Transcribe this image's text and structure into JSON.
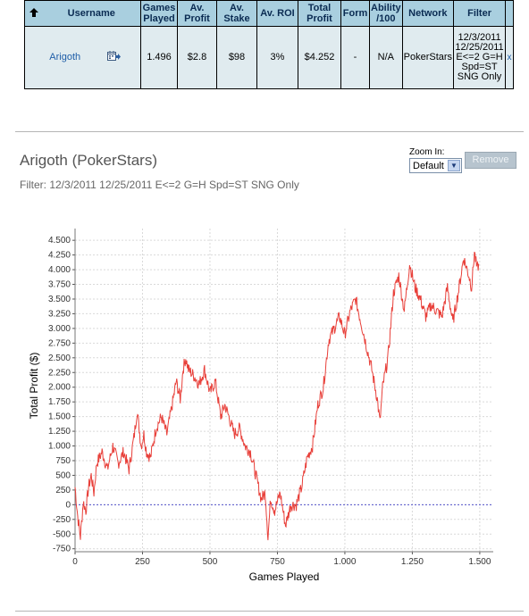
{
  "table": {
    "headers": {
      "username": "Username",
      "games": [
        "Games",
        "Played"
      ],
      "av_profit": [
        "Av.",
        "Profit"
      ],
      "av_stake": [
        "Av.",
        "Stake"
      ],
      "av_roi": "Av. ROI",
      "total_profit": [
        "Total",
        "Profit"
      ],
      "form": "Form",
      "ability": [
        "Ability",
        "/100"
      ],
      "network": "Network",
      "filter": "Filter"
    },
    "row": {
      "username": "Arigoth",
      "games": "1.496",
      "av_profit": "$2.8",
      "av_stake": "$98",
      "av_roi": "3%",
      "total_profit": "$4.252",
      "form": "-",
      "ability": "N/A",
      "network": "PokerStars",
      "filter_lines": [
        "12/3/2011",
        "12/25/2011",
        "E<=2 G=H",
        "Spd=ST",
        "SNG Only"
      ],
      "filter_close": "x"
    }
  },
  "chart_section": {
    "title": "Arigoth (PokerStars)",
    "filter_text": "Filter: 12/3/2011 12/25/2011 E<=2 G=H Spd=ST SNG Only",
    "zoom_label": "Zoom In:",
    "zoom_value": "Default",
    "remove_label": "Remove"
  },
  "colors": {
    "header_bg": "#a9cfdf",
    "row_bg": "#e0ebef",
    "line": "#e8403a",
    "zero_line": "#5555cc"
  },
  "chart_data": {
    "type": "line",
    "xlabel": "Games Played",
    "ylabel": "Total Profit ($)",
    "xlim": [
      0,
      1550
    ],
    "ylim": [
      -800,
      4700
    ],
    "x_ticks": [
      0,
      250,
      500,
      750,
      1000,
      1250,
      1500
    ],
    "x_tick_labels": [
      "0",
      "250",
      "500",
      "750",
      "1.000",
      "1.250",
      "1.500"
    ],
    "y_ticks": [
      -750,
      -500,
      -250,
      0,
      250,
      500,
      750,
      1000,
      1250,
      1500,
      1750,
      2000,
      2250,
      2500,
      2750,
      3000,
      3250,
      3500,
      3750,
      4000,
      4250,
      4500
    ],
    "y_tick_labels": [
      "-750",
      "-500",
      "-250",
      "0",
      "250",
      "500",
      "750",
      "1.000",
      "1.250",
      "1.500",
      "1.750",
      "2.000",
      "2.250",
      "2.500",
      "2.750",
      "3.000",
      "3.250",
      "3.500",
      "3.750",
      "4.000",
      "4.250",
      "4.500"
    ],
    "grid": true,
    "zero_line": true,
    "series": [
      {
        "x": [
          0,
          10,
          20,
          30,
          40,
          50,
          60,
          70,
          80,
          100,
          120,
          140,
          160,
          180,
          200,
          220,
          230,
          245,
          255,
          265,
          280,
          300,
          320,
          340,
          360,
          375,
          390,
          400,
          410,
          420,
          440,
          460,
          480,
          500,
          520,
          540,
          555,
          570,
          590,
          610,
          630,
          650,
          670,
          690,
          705,
          715,
          725,
          740,
          760,
          780,
          800,
          820,
          840,
          860,
          880,
          900,
          920,
          940,
          960,
          980,
          1000,
          1020,
          1040,
          1060,
          1080,
          1100,
          1120,
          1130,
          1140,
          1160,
          1180,
          1200,
          1220,
          1240,
          1260,
          1280,
          1300,
          1320,
          1340,
          1360,
          1380,
          1400,
          1420,
          1440,
          1460,
          1470,
          1480,
          1490,
          1496
        ],
        "y": [
          300,
          -200,
          -550,
          50,
          -100,
          300,
          500,
          200,
          700,
          900,
          600,
          1000,
          700,
          900,
          600,
          1200,
          1600,
          1000,
          1200,
          900,
          800,
          1300,
          1500,
          1200,
          1700,
          2100,
          1800,
          2300,
          2500,
          2300,
          2200,
          2050,
          2300,
          1900,
          2100,
          1500,
          1700,
          1500,
          1200,
          1300,
          1000,
          900,
          500,
          100,
          200,
          -550,
          100,
          -100,
          200,
          -350,
          0,
          0,
          300,
          800,
          1000,
          1700,
          2000,
          2800,
          3000,
          3200,
          2900,
          3300,
          3500,
          3100,
          2700,
          2300,
          1800,
          1400,
          2000,
          2500,
          3600,
          3900,
          3300,
          4100,
          3700,
          3500,
          3200,
          3400,
          3300,
          3200,
          3700,
          3100,
          3600,
          4200,
          3900,
          3700,
          4300,
          4000,
          4100
        ]
      }
    ]
  }
}
